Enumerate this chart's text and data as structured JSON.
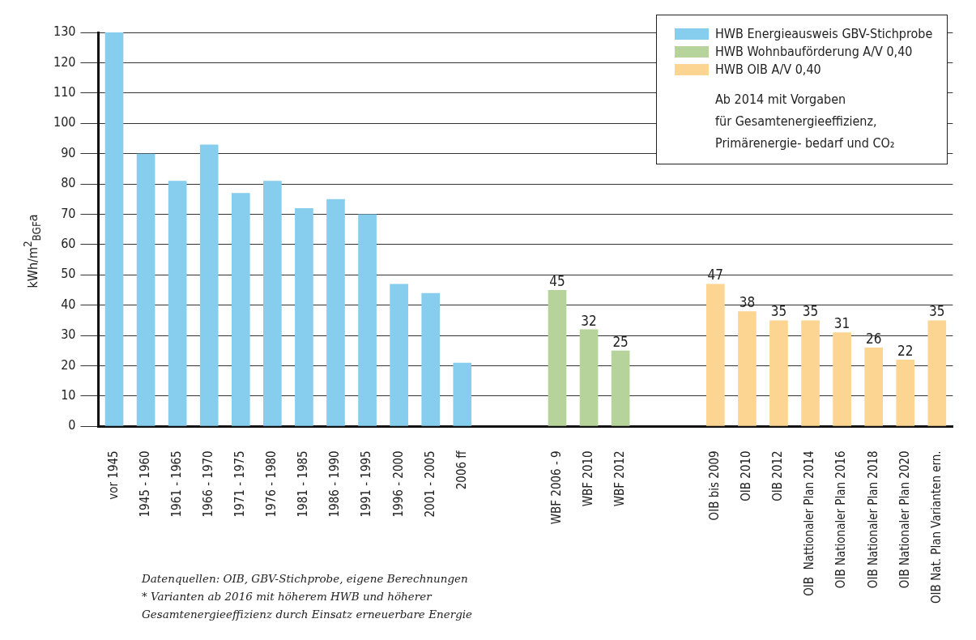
{
  "chart_data": {
    "type": "bar",
    "ylabel": "kWh/m$^{2}$$_{BGF}$a",
    "categories": [
      "vor 1945",
      "1945 - 1960",
      "1961 - 1965",
      "1966 - 1970",
      "1971 - 1975",
      "1976 - 1980",
      "1981 - 1985",
      "1986 - 1990",
      "1991 - 1995",
      "1996 - 2000",
      "2001 - 2005",
      "2006 ff",
      null,
      null,
      "WBF 2006 - 9",
      "WBF 2010",
      "WBF 2012",
      null,
      null,
      "OIB bis 2009",
      "OIB 2010",
      "OIB 2012",
      "OIB  Nattionaler Plan 2014",
      "OIB Nationaler Plan 2016",
      "OIB Nationaler Plan 2018",
      "OIB Nationaler Plan 2020",
      "OIB Nat. Plan Varianten ern."
    ],
    "series": [
      {
        "name": "HWB Energieausweis GBV-Stichprobe",
        "color": "#87cdee",
        "values": [
          130,
          90,
          81,
          93,
          77,
          81,
          72,
          75,
          70,
          47,
          44,
          21,
          null,
          null,
          null,
          null,
          null,
          null,
          null,
          null,
          null,
          null,
          null,
          null,
          null,
          null,
          null
        ]
      },
      {
        "name": "HWB Wohnbauförderung A/V 0,40",
        "color": "#b5d39a",
        "values": [
          null,
          null,
          null,
          null,
          null,
          null,
          null,
          null,
          null,
          null,
          null,
          null,
          null,
          null,
          45,
          32,
          25,
          null,
          null,
          null,
          null,
          null,
          null,
          null,
          null,
          null,
          null
        ],
        "value_labels": [
          null,
          null,
          null,
          null,
          null,
          null,
          null,
          null,
          null,
          null,
          null,
          null,
          null,
          null,
          "45",
          "32",
          "25",
          null,
          null,
          null,
          null,
          null,
          null,
          null,
          null,
          null,
          null
        ]
      },
      {
        "name": "HWB OIB A/V 0,40",
        "color": "#fdd592",
        "values": [
          null,
          null,
          null,
          null,
          null,
          null,
          null,
          null,
          null,
          null,
          null,
          null,
          null,
          null,
          null,
          null,
          null,
          null,
          null,
          47,
          38,
          35,
          35,
          31,
          26,
          22,
          35
        ],
        "value_labels": [
          null,
          null,
          null,
          null,
          null,
          null,
          null,
          null,
          null,
          null,
          null,
          null,
          null,
          null,
          null,
          null,
          null,
          null,
          null,
          "47",
          "38",
          "35",
          "35",
          "31",
          "26",
          "22",
          "35"
        ]
      }
    ],
    "ylim": [
      0,
      130
    ],
    "yticks": [
      0,
      10,
      20,
      30,
      40,
      50,
      60,
      70,
      80,
      90,
      100,
      110,
      120,
      130
    ],
    "grid": "y",
    "legend": "top right",
    "annotations": [
      "Ab 2014 mit Vorgaben\nfür Gesamtenergieeffizienz,\nPrimärenergie- bedarf und CO₂",
      "Datenquellen: OIB, GBV-Stichprobe, eigene Berechnungen\n* Varianten ab 2016 mit höherem HWB und höherer\nGesamtenergieeffizienz durch Einsatz erneuerbare Energie"
    ]
  }
}
